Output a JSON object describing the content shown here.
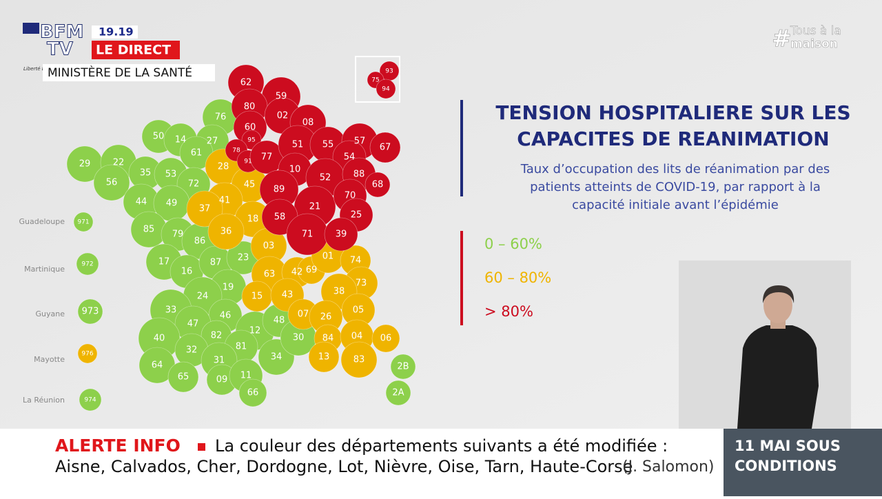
{
  "broadcast": {
    "logo_top": "BFM",
    "logo_bottom": "TV",
    "time": "19.19",
    "live": "LE DIRECT",
    "source": "MINISTÈRE DE LA SANTÉ",
    "motto": "Liberté Égalité Fraternité",
    "hashtag_symbol": "#",
    "hashtag_top": "Tous à la",
    "hashtag_bottom": "maison"
  },
  "map": {
    "title_lines": [
      "TENSION HOSPITALIERE SUR LES",
      "CAPACITES DE REANIMATION"
    ],
    "subtitle_lines": [
      "Taux d’occupation des lits de réanimation par des",
      "patients atteints de COVID-19, par rapport à la",
      "capacité initiale avant l’épidémie"
    ],
    "groups": [
      {
        "label": "0 – 60%",
        "color": "#8dd04b",
        "departments": [
          "76",
          "50",
          "14",
          "27",
          "61",
          "29",
          "22",
          "35",
          "53",
          "72",
          "56",
          "44",
          "49",
          "85",
          "79",
          "86",
          "17",
          "16",
          "87",
          "23",
          "19",
          "24",
          "33",
          "46",
          "47",
          "40",
          "82",
          "12",
          "81",
          "32",
          "31",
          "64",
          "65",
          "09",
          "11",
          "34",
          "66",
          "48",
          "30",
          "2B",
          "2A",
          "971",
          "972",
          "973",
          "974"
        ]
      },
      {
        "label": "60 – 80%",
        "color": "#efb400",
        "departments": [
          "28",
          "45",
          "41",
          "18",
          "37",
          "36",
          "03",
          "63",
          "42",
          "69",
          "01",
          "74",
          "73",
          "38",
          "15",
          "43",
          "07",
          "26",
          "05",
          "84",
          "04",
          "06",
          "13",
          "83",
          "976"
        ]
      },
      {
        "label": "> 80%",
        "color": "#cc0c1f",
        "departments": [
          "62",
          "59",
          "80",
          "02",
          "60",
          "08",
          "95",
          "78",
          "91",
          "77",
          "51",
          "55",
          "57",
          "67",
          "54",
          "10",
          "52",
          "88",
          "68",
          "89",
          "21",
          "70",
          "25",
          "58",
          "71",
          "39",
          "93",
          "75",
          "94"
        ]
      }
    ],
    "overseas_names": [
      "Guadeloupe",
      "Martinique",
      "Guyane",
      "Mayotte",
      "La Réunion"
    ]
  },
  "ticker": {
    "alert": "ALERTE INFO",
    "line1": "La couleur des départements suivants a été modifiée :",
    "line2": "Aisne, Calvados, Cher, Dordogne, Lot, Nièvre, Oise, Tarn, Haute-Corse",
    "credit": "(J. Salomon)",
    "promo_lines": [
      "11 MAI SOUS",
      "CONDITIONS"
    ]
  }
}
